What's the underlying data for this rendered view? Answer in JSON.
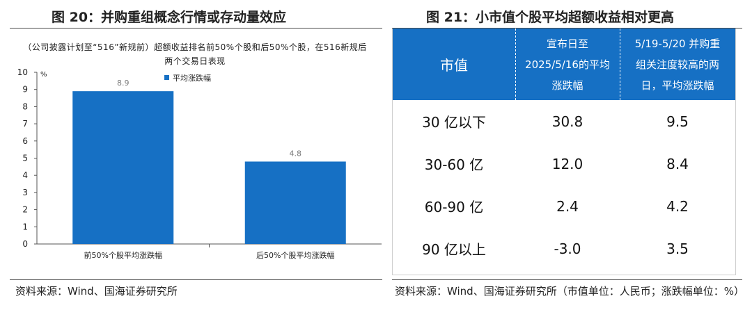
{
  "left_figure": {
    "title": "图 20：并购重组概念行情或存动量效应",
    "source": "资料来源：Wind、国海证券研究所"
  },
  "right_figure": {
    "title": "图 21：小市值个股平均超额收益相对更高",
    "source": "资料来源：Wind、国海证券研究所（市值单位：人民币；涨跌幅单位：%）"
  },
  "chart_data": {
    "type": "bar",
    "title": "（公司披露计划至“516”新规前）超额收益排名前50%个股和后50%个股，在516新规后两个交易日表现",
    "unit": "%",
    "categories": [
      "前50%个股平均涨跌幅",
      "后50%个股平均涨跌幅"
    ],
    "series": [
      {
        "name": "平均涨跌幅",
        "values": [
          8.9,
          4.8
        ]
      }
    ],
    "ylim": [
      0,
      10
    ],
    "yticks": [
      "0",
      "1",
      "2",
      "3",
      "4",
      "5",
      "6",
      "7",
      "8",
      "9",
      "10"
    ],
    "data_labels": [
      "8.9",
      "4.8"
    ],
    "bar_color": "#1670c4",
    "legend_position": "top",
    "grid": false
  },
  "table": {
    "header_color": "#1670c4",
    "headers": [
      "市值",
      "宣布日至\n2025/5/16的平均\n涨跌幅",
      "5/19-5/20 并购重\n组关注度较高的两\n日，平均涨跌幅"
    ],
    "rows": [
      [
        "30 亿以下",
        "30.8",
        "9.5"
      ],
      [
        "30-60 亿",
        "12.0",
        "8.4"
      ],
      [
        "60-90 亿",
        "2.4",
        "4.2"
      ],
      [
        "90 亿以上",
        "-3.0",
        "3.5"
      ]
    ]
  }
}
